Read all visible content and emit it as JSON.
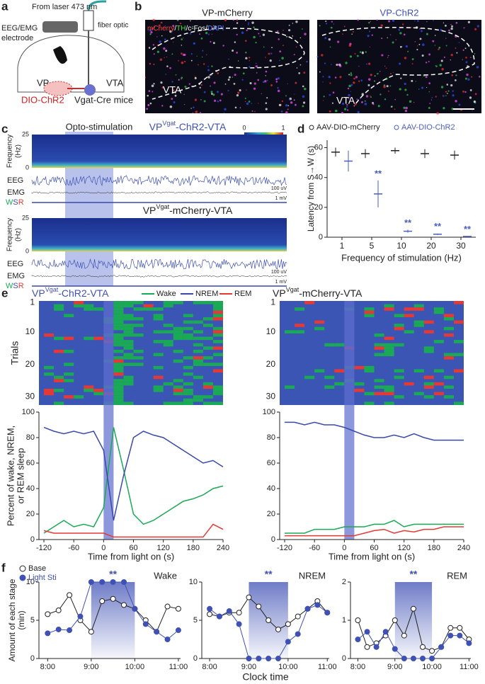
{
  "panel_labels": [
    "a",
    "b",
    "c",
    "d",
    "e",
    "f"
  ],
  "a": {
    "laser": "From laser 473 nm",
    "fiber": "fiber optic",
    "electrode": [
      "EEG/EMG",
      "electrode"
    ],
    "vp": "VP",
    "vta": "VTA",
    "virus": "DIO-ChR2",
    "mice": "Vgat-Cre mice"
  },
  "b": {
    "titles": [
      "VP-mCherry",
      "VP-ChR2"
    ],
    "stain": [
      "mCherry",
      "/",
      "TH",
      "/c-Fos/",
      "DAPI"
    ],
    "region": [
      "VTA",
      "VTA"
    ]
  },
  "c": {
    "stim": "Opto-stimulation",
    "traces": [
      {
        "title": [
          "VP",
          "Vgat",
          "-ChR2-VTA"
        ]
      },
      {
        "title": [
          "VP",
          "Vgat",
          "-mCherry-VTA"
        ]
      }
    ],
    "freq_label": [
      "Frequency",
      "(Hz)"
    ],
    "freq_lim": [
      0,
      25
    ],
    "freq_ticks": [
      0,
      25
    ],
    "colorbar_ticks": [
      0,
      1
    ],
    "eeg": "EEG",
    "emg": "EMG",
    "states": [
      "W",
      "S",
      "R"
    ],
    "scale_eeg": "100 uV",
    "scale_emg": "1 mV"
  },
  "chart_data": [
    {
      "type": "errorbar",
      "categories": [
        "1",
        "5",
        "10",
        "20",
        "30"
      ],
      "series": [
        {
          "name": "AAV-DIO-mCherry",
          "color": "#222222",
          "values": [
            57,
            56,
            58,
            56,
            55
          ],
          "errors": [
            3,
            3,
            2,
            3,
            3
          ]
        },
        {
          "name": "AAV-DIO-ChR2",
          "color": "#4a5fc1",
          "values": [
            51,
            29,
            4,
            2,
            0.5
          ],
          "errors": [
            7,
            9,
            1,
            0.5,
            0.2
          ],
          "significance": [
            null,
            "**",
            "**",
            "**",
            "**"
          ]
        }
      ],
      "ylim": [
        0,
        65
      ],
      "yticks": [
        0,
        20,
        40,
        60
      ],
      "ylabel": "Latency from S→W (s)",
      "xlabel": "Frequency of stimulation (Hz)"
    },
    {
      "type": "line",
      "title": [
        "VP",
        "Vgat",
        "-ChR2-VTA"
      ],
      "trials_label": "Trials",
      "trial_lim": [
        0.5,
        32.5
      ],
      "trial_ticks": [
        1,
        10,
        20,
        30
      ],
      "x": [
        -120,
        -100,
        -80,
        -60,
        -40,
        -20,
        0,
        20,
        40,
        60,
        80,
        100,
        120,
        140,
        160,
        180,
        200,
        220,
        240
      ],
      "series": [
        {
          "name": "Wake",
          "color": "#1aaa55",
          "values": [
            5,
            10,
            15,
            10,
            12,
            10,
            25,
            88,
            55,
            20,
            12,
            15,
            20,
            25,
            30,
            32,
            35,
            40,
            42
          ]
        },
        {
          "name": "NREM",
          "color": "#3949ab",
          "values": [
            88,
            85,
            83,
            85,
            83,
            85,
            70,
            15,
            50,
            80,
            85,
            82,
            80,
            75,
            70,
            65,
            60,
            62,
            57
          ]
        },
        {
          "name": "REM",
          "color": "#e53935",
          "values": [
            7,
            5,
            5,
            5,
            5,
            5,
            5,
            2,
            2,
            2,
            2,
            2,
            2,
            2,
            2,
            2,
            2,
            12,
            8
          ]
        }
      ],
      "xlim": [
        -130,
        240
      ],
      "xticks": [
        -120,
        -60,
        0,
        60,
        120,
        180,
        240
      ],
      "ylim": [
        0,
        100
      ],
      "yticks": [
        0,
        20,
        40,
        60,
        80,
        100
      ],
      "ylabel": [
        "Percent of wake, NREM,",
        "or REM sleep"
      ],
      "xlabel": "Time from light on (s)",
      "shaded": [
        0,
        20
      ]
    },
    {
      "type": "line",
      "title": [
        "VP",
        "Vgat",
        "-mCherry-VTA"
      ],
      "trial_lim": [
        0.5,
        32.5
      ],
      "trial_ticks": [
        1,
        10,
        20,
        30
      ],
      "x": [
        -120,
        -100,
        -80,
        -60,
        -40,
        -20,
        0,
        20,
        40,
        60,
        80,
        100,
        120,
        140,
        160,
        180,
        200,
        220,
        240
      ],
      "series": [
        {
          "color": "#1aaa55",
          "values": [
            5,
            5,
            5,
            8,
            8,
            8,
            10,
            10,
            10,
            12,
            12,
            15,
            10,
            12,
            12,
            12,
            12,
            12,
            12
          ]
        },
        {
          "color": "#3949ab",
          "values": [
            92,
            92,
            90,
            92,
            90,
            90,
            88,
            85,
            82,
            80,
            80,
            82,
            80,
            83,
            80,
            78,
            78,
            78,
            78
          ]
        },
        {
          "color": "#e53935",
          "values": [
            3,
            3,
            3,
            3,
            3,
            3,
            3,
            3,
            5,
            7,
            8,
            5,
            7,
            6,
            8,
            8,
            10,
            10,
            10
          ]
        }
      ],
      "xlim": [
        -130,
        240
      ],
      "xticks": [
        -120,
        -60,
        0,
        60,
        120,
        180,
        240
      ],
      "ylim": [
        0,
        100
      ],
      "yticks": [
        0,
        20,
        40,
        60,
        80,
        100
      ],
      "xlabel": "Time from light on (s)",
      "shaded": [
        0,
        20
      ]
    },
    {
      "type": "line",
      "title": "Wake",
      "x": [
        8,
        8.25,
        8.5,
        8.75,
        9,
        9.25,
        9.5,
        9.75,
        10,
        10.25,
        10.5,
        10.75,
        11
      ],
      "series": [
        {
          "name": "Base",
          "color": "#222222",
          "fill": "#ffffff",
          "values": [
            5.8,
            6.3,
            8.3,
            5,
            3.5,
            7.5,
            7.8,
            7,
            6.5,
            5,
            3.5,
            6.8,
            6.5
          ]
        },
        {
          "name": "Light Sti",
          "color": "#3f51b5",
          "fill": "#3f51b5",
          "values": [
            3.3,
            3.8,
            3.7,
            5.5,
            10,
            10,
            10,
            10,
            6.5,
            4.5,
            3.5,
            2.5,
            3.7
          ]
        }
      ],
      "xlim": [
        7.8,
        11.05
      ],
      "xticks": [
        {
          "value": 8,
          "label": "8:00"
        },
        {
          "value": 9,
          "label": "9:00"
        },
        {
          "value": 10,
          "label": "10:00"
        },
        {
          "value": 11,
          "label": "11:00"
        }
      ],
      "ylim": [
        0,
        10
      ],
      "yticks": [
        0,
        5,
        10
      ],
      "ylabel": [
        "Amount of each stage",
        "(min)"
      ],
      "shaded": [
        9,
        10
      ],
      "significance": "**"
    },
    {
      "type": "line",
      "title": "NREM",
      "x": [
        8,
        8.25,
        8.5,
        8.75,
        9,
        9.25,
        9.5,
        9.75,
        10,
        10.25,
        10.5,
        10.75,
        11
      ],
      "series": [
        {
          "color": "#222222",
          "fill": "#ffffff",
          "values": [
            5.8,
            5.5,
            6,
            6,
            8,
            6.8,
            5,
            3.8,
            4.5,
            5.5,
            6.5,
            7.5,
            6
          ]
        },
        {
          "color": "#3f51b5",
          "fill": "#3f51b5",
          "values": [
            6.5,
            5.5,
            6.2,
            4.5,
            0,
            0,
            0,
            0,
            2.2,
            3.2,
            6.5,
            7,
            6
          ]
        }
      ],
      "xlim": [
        7.8,
        11.05
      ],
      "xticks": [
        {
          "value": 8,
          "label": "8:00"
        },
        {
          "value": 9,
          "label": "9:00"
        },
        {
          "value": 10,
          "label": "10:00"
        },
        {
          "value": 11,
          "label": "11:00"
        }
      ],
      "ylim": [
        0,
        10
      ],
      "yticks": [
        0,
        5,
        10
      ],
      "xlabel": "Clock time",
      "shaded": [
        9,
        10
      ],
      "significance": "**"
    },
    {
      "type": "line",
      "title": "REM",
      "x": [
        8,
        8.25,
        8.5,
        8.75,
        9,
        9.25,
        9.5,
        9.75,
        10,
        10.25,
        10.5,
        10.75,
        11
      ],
      "series": [
        {
          "color": "#222222",
          "fill": "#ffffff",
          "values": [
            1,
            0.3,
            0.4,
            0.6,
            1,
            0.6,
            1.3,
            0.3,
            0.2,
            0.3,
            0.8,
            0.8,
            0.5
          ]
        },
        {
          "color": "#3f51b5",
          "fill": "#3f51b5",
          "values": [
            0.5,
            0.7,
            0.3,
            0.7,
            0.25,
            0,
            0,
            0,
            0,
            0.3,
            0.6,
            0.6,
            0.4
          ]
        }
      ],
      "xlim": [
        7.8,
        11.05
      ],
      "xticks": [
        {
          "value": 8,
          "label": "8:00"
        },
        {
          "value": 9,
          "label": "9:00"
        },
        {
          "value": 10,
          "label": "10:00"
        },
        {
          "value": 11,
          "label": "11:00"
        }
      ],
      "ylim": [
        0,
        2
      ],
      "yticks": [
        0,
        1,
        2
      ],
      "shaded": [
        9,
        10
      ],
      "significance": "**"
    }
  ]
}
